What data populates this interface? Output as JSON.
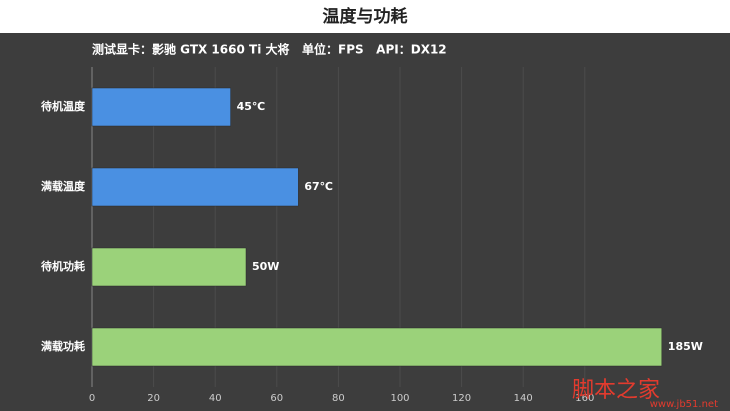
{
  "chart_data": {
    "type": "hbar",
    "title": "温度与功耗",
    "subtitle": "测试显卡：影驰 GTX 1660 Ti 大将   单位：FPS   API：DX12",
    "categories": [
      "待机温度",
      "满载温度",
      "待机功耗",
      "满载功耗"
    ],
    "values": [
      45,
      67,
      50,
      185
    ],
    "value_labels": [
      "45℃",
      "67℃",
      "50W",
      "185W"
    ],
    "colors": [
      "#4a90e2",
      "#4a90e2",
      "#9bd27a",
      "#9bd27a"
    ],
    "xlim": [
      0,
      200
    ],
    "xticks": [
      0,
      20,
      40,
      60,
      80,
      100,
      120,
      140,
      160
    ],
    "grid": true
  },
  "watermark": {
    "name": "脚本之家",
    "url": "www.jb51.net"
  }
}
